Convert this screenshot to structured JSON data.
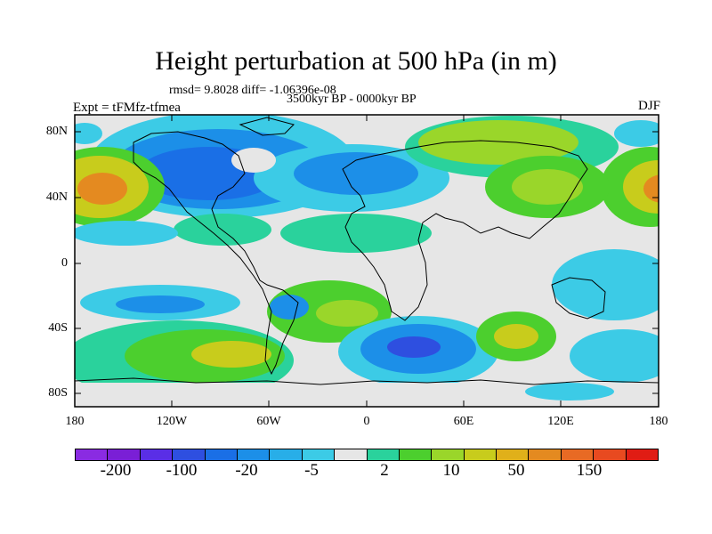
{
  "title": "Height perturbation at 500 hPa (in m)",
  "stats_line": "rmsd= 9.8028 diff= -1.06396e-08",
  "period_line": "3500kyr BP - 0000kyr BP",
  "experiment_label": "Expt = tFMfz-tfmea",
  "season_label": "DJF",
  "y_ticks": [
    "80N",
    "40N",
    "0",
    "40S",
    "80S"
  ],
  "x_ticks": [
    "180",
    "120W",
    "60W",
    "0",
    "60E",
    "120E",
    "180"
  ],
  "colorbar": {
    "colors": [
      "#8a2be2",
      "#7a1fd6",
      "#5a2ee6",
      "#2e4fe0",
      "#1a6fe6",
      "#1c8fe8",
      "#28aee8",
      "#3ccbe6",
      "#e6e6e6",
      "#2ad29c",
      "#4ccf2e",
      "#9ad62a",
      "#c8cc1c",
      "#e0b01a",
      "#e48a20",
      "#e86a24",
      "#e84a20",
      "#e01c14"
    ],
    "labels": [
      "-200",
      "-100",
      "-20",
      "-5",
      "2",
      "10",
      "50",
      "150"
    ]
  },
  "palette": {
    "neutral": "#e6e6e6",
    "light_blue": "#3ccbe6",
    "mid_blue": "#1c8fe8",
    "deep_blue": "#1a6fe6",
    "darkest_blue": "#2e4fe0",
    "teal_green": "#2ad29c",
    "green": "#4ccf2e",
    "yellow_green": "#9ad62a",
    "yellow": "#c8cc1c",
    "orange": "#e48a20"
  }
}
